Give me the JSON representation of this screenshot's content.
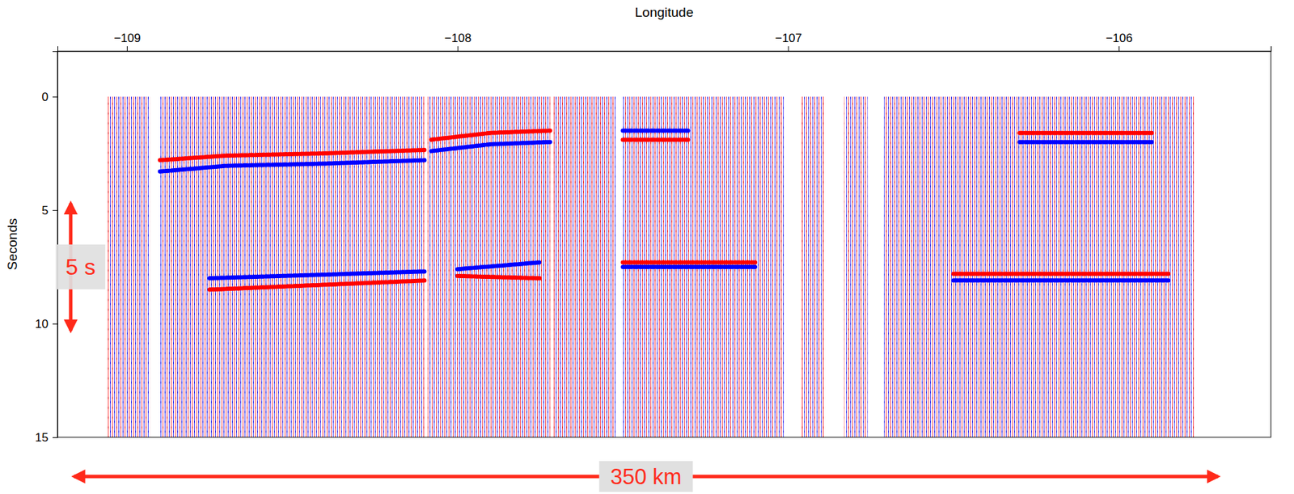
{
  "chart_data": {
    "type": "seismic_section",
    "xlabel": "Longitude",
    "ylabel": "Seconds",
    "xlim": [
      -109.21,
      -105.54
    ],
    "ylim": [
      -2,
      15
    ],
    "xticks": [
      {
        "value": -109,
        "label": "−109"
      },
      {
        "value": -108,
        "label": "−108"
      },
      {
        "value": -107,
        "label": "−107"
      },
      {
        "value": -106,
        "label": "−106"
      }
    ],
    "yticks": [
      0,
      5,
      10,
      15
    ],
    "t_range": [
      0,
      15
    ],
    "trace_segments": [
      [
        -109.06,
        -108.93
      ],
      [
        -108.9,
        -108.1
      ],
      [
        -108.09,
        -107.72
      ],
      [
        -107.71,
        -107.52
      ],
      [
        -107.5,
        -107.01
      ],
      [
        -106.96,
        -106.89
      ],
      [
        -106.83,
        -106.76
      ],
      [
        -106.71,
        -105.77
      ]
    ],
    "reflectors": [
      {
        "color": "#ff0000",
        "x": [
          -108.9,
          -108.7,
          -108.4,
          -108.1
        ],
        "y": [
          2.8,
          2.6,
          2.5,
          2.35
        ]
      },
      {
        "color": "#0000ff",
        "x": [
          -108.9,
          -108.7,
          -108.4,
          -108.1
        ],
        "y": [
          3.3,
          3.05,
          2.95,
          2.8
        ]
      },
      {
        "color": "#ff0000",
        "x": [
          -108.08,
          -107.9,
          -107.72
        ],
        "y": [
          1.9,
          1.6,
          1.5
        ]
      },
      {
        "color": "#0000ff",
        "x": [
          -108.08,
          -107.9,
          -107.72
        ],
        "y": [
          2.4,
          2.1,
          2.0
        ]
      },
      {
        "color": "#0000ff",
        "x": [
          -107.5,
          -107.3
        ],
        "y": [
          1.5,
          1.5
        ]
      },
      {
        "color": "#ff0000",
        "x": [
          -107.5,
          -107.3
        ],
        "y": [
          1.9,
          1.9
        ]
      },
      {
        "color": "#ff0000",
        "x": [
          -106.3,
          -105.9
        ],
        "y": [
          1.6,
          1.6
        ]
      },
      {
        "color": "#0000ff",
        "x": [
          -106.3,
          -105.9
        ],
        "y": [
          2.0,
          2.0
        ]
      },
      {
        "color": "#0000ff",
        "x": [
          -108.75,
          -108.1
        ],
        "y": [
          8.0,
          7.7
        ]
      },
      {
        "color": "#ff0000",
        "x": [
          -108.75,
          -108.1
        ],
        "y": [
          8.5,
          8.1
        ]
      },
      {
        "color": "#0000ff",
        "x": [
          -108.0,
          -107.75
        ],
        "y": [
          7.6,
          7.3
        ]
      },
      {
        "color": "#ff0000",
        "x": [
          -108.0,
          -107.75
        ],
        "y": [
          7.9,
          8.0
        ]
      },
      {
        "color": "#ff0000",
        "x": [
          -107.5,
          -107.1
        ],
        "y": [
          7.3,
          7.3
        ]
      },
      {
        "color": "#0000ff",
        "x": [
          -107.5,
          -107.1
        ],
        "y": [
          7.5,
          7.5
        ]
      },
      {
        "color": "#ff0000",
        "x": [
          -106.5,
          -105.85
        ],
        "y": [
          7.8,
          7.8
        ]
      },
      {
        "color": "#0000ff",
        "x": [
          -106.5,
          -105.85
        ],
        "y": [
          8.1,
          8.1
        ]
      }
    ],
    "annotations": [
      {
        "text": "5 s",
        "x": -109.17,
        "y": [
          4.7,
          10.3
        ]
      },
      {
        "text": "350 km",
        "x": [
          -109.16,
          -105.7
        ]
      }
    ]
  }
}
